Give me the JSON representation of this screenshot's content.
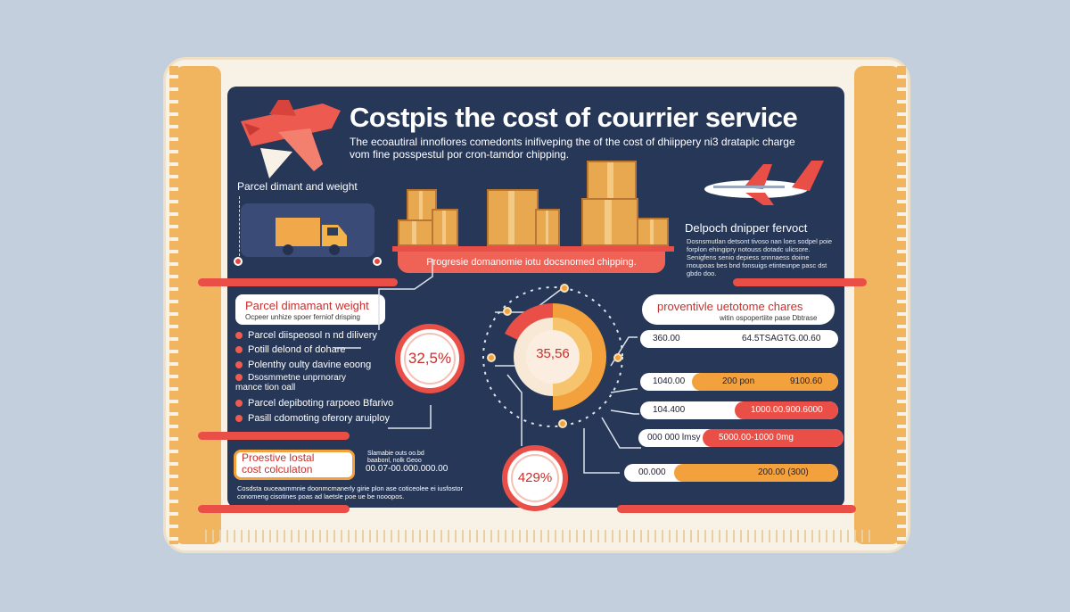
{
  "title": "Costpis the cost of courrier service",
  "subtitle": "The ecoautiral innofiores comedonts inifiveping the of the cost of dhiippery ni3 dratapic charge\nvom fine posspestul por cron-tamdor chipping.",
  "section_parcel": "Parcel dimant and weight",
  "banner_shipping": "Progresie domanomie iotu docsnomed chipping.",
  "section_depot": "Delpoch dnipper fervoct",
  "depot_text": "Dosnsmutlan detsont tivoso nan loes sodpel poie forplon ehingipry notouss dotadc ulicsore. Senigfens senio depiess snnnaess doiine rnoupoas bes bnd fonsuigs etinteunpe pasc dst gbdo doo.",
  "card_weight": {
    "title": "Parcel dimamant weight",
    "subtitle": "Ocpeer unhize spoer ferniof drisping"
  },
  "bullets": [
    "Parcel diispeosol n nd dilivery",
    "Potill delond of dohare",
    "Polenthy oulty davine eoong",
    "Dsosmmetne unprnorary\nmance tion oall",
    "Parcel depiboting rarpoeo Bfarivo",
    "Pasill cdomoting oferory aruiploy"
  ],
  "stat_left": "32,5%",
  "stat_center": "35,56",
  "stat_bottom": "429%",
  "card_charges": {
    "title": "proventivle uetotome chares",
    "subtitle": "witin ospopertiite pase Dbtrase"
  },
  "pills": [
    {
      "left": "360.00",
      "right": "64.5TSAGTG.00.60",
      "fill": 0.62
    },
    {
      "left": "1040.00",
      "middle": "200 pon",
      "right": "9100.60",
      "fill": 0.78
    },
    {
      "left": "104.400",
      "right": "1000.00.900.6000",
      "fill": 0.52
    },
    {
      "left": "000 000 lmsy",
      "right": "5000.00-1000 0mg",
      "fill": 0.72
    },
    {
      "left": "00.000",
      "right": "200.00 (300)",
      "fill": 0.86
    }
  ],
  "card_postal": {
    "title": "Proestive lostal\ncost colculaton",
    "note": "Slamabie outs oo.bd\nbaabonl, nolk Geoo",
    "value": "00.07-00.000.000.00"
  },
  "footer_text": "Cosdsta ouceaammnie doonmcmanerly girie plon ase coticeolee ei iusfostor\nconomeng cisotines poas ad laetsle poe ue be nooopos.",
  "colors": {
    "background": "#c4cfdd",
    "panel": "#263757",
    "accent_red": "#ea4f47",
    "accent_orange": "#f3a13c"
  }
}
